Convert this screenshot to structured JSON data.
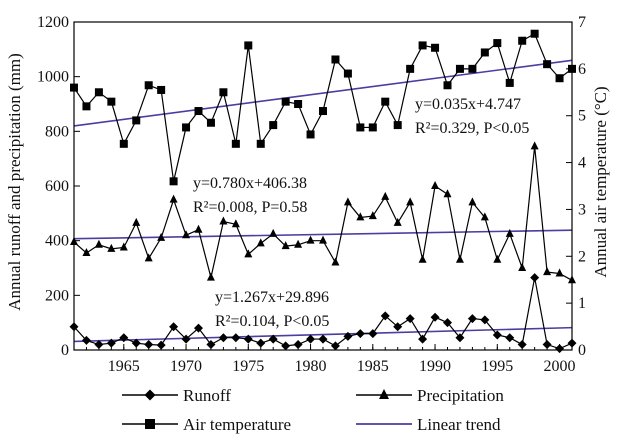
{
  "chart_data": {
    "type": "line",
    "x": [
      1961,
      1962,
      1963,
      1964,
      1965,
      1966,
      1967,
      1968,
      1969,
      1970,
      1971,
      1972,
      1973,
      1974,
      1975,
      1976,
      1977,
      1978,
      1979,
      1980,
      1981,
      1982,
      1983,
      1984,
      1985,
      1986,
      1987,
      1988,
      1989,
      1990,
      1991,
      1992,
      1993,
      1994,
      1995,
      1996,
      1997,
      1998,
      1999,
      2000,
      2001
    ],
    "x_ticks": [
      1965,
      1970,
      1975,
      1980,
      1985,
      1990,
      1995,
      2000
    ],
    "xlim": [
      1961,
      2001
    ],
    "left_axis": {
      "label": "Annual runoff and precipitation (mm)",
      "ylim": [
        0,
        1200
      ],
      "ticks": [
        0,
        200,
        400,
        600,
        800,
        1000,
        1200
      ]
    },
    "right_axis": {
      "label": "Annual air temperature (°C)",
      "ylim": [
        0,
        7
      ],
      "ticks": [
        0,
        1,
        2,
        3,
        4,
        5,
        6,
        7
      ]
    },
    "series": [
      {
        "name": "Runoff",
        "axis": "left",
        "marker": "diamond",
        "values": [
          85,
          35,
          20,
          25,
          45,
          25,
          20,
          18,
          85,
          40,
          80,
          20,
          45,
          45,
          40,
          25,
          40,
          15,
          20,
          40,
          40,
          15,
          50,
          60,
          60,
          125,
          85,
          115,
          40,
          120,
          100,
          45,
          115,
          110,
          55,
          45,
          20,
          265,
          20,
          5,
          25
        ]
      },
      {
        "name": "Precipitation",
        "axis": "left",
        "marker": "triangle",
        "values": [
          395,
          355,
          385,
          370,
          375,
          465,
          335,
          410,
          550,
          420,
          440,
          265,
          470,
          460,
          350,
          390,
          425,
          380,
          385,
          400,
          400,
          320,
          540,
          485,
          490,
          560,
          465,
          540,
          330,
          600,
          570,
          330,
          540,
          485,
          330,
          425,
          300,
          745,
          285,
          280,
          255
        ]
      },
      {
        "name": "Air temperature",
        "axis": "right",
        "marker": "square",
        "values": [
          5.6,
          5.2,
          5.5,
          5.3,
          4.4,
          4.9,
          5.65,
          5.55,
          3.6,
          4.75,
          5.1,
          4.85,
          5.5,
          4.4,
          6.5,
          4.4,
          4.8,
          5.3,
          5.25,
          4.6,
          5.1,
          6.2,
          5.9,
          4.75,
          4.75,
          5.3,
          4.8,
          6.0,
          6.5,
          6.45,
          5.65,
          6.0,
          6.0,
          6.35,
          6.55,
          5.7,
          6.6,
          6.75,
          6.1,
          5.8,
          6.0
        ]
      }
    ],
    "trend_lines": [
      {
        "axis": "right",
        "slope": 0.035,
        "intercept": 4.747,
        "equation": "y=0.035x+4.747",
        "stats": "R²=0.329,  P<0.05"
      },
      {
        "axis": "left",
        "slope": 0.78,
        "intercept": 406.38,
        "equation": "y=0.780x+406.38",
        "stats": "R²=0.008,  P=0.58"
      },
      {
        "axis": "left",
        "slope": 1.267,
        "intercept": 29.896,
        "equation": "y=1.267x+29.896",
        "stats": "R²=0.104,  P<0.05"
      }
    ],
    "legend": {
      "placement": "bottom",
      "entries": [
        "Runoff",
        "Precipitation",
        "Air temperature",
        "Linear trend"
      ]
    },
    "colors": {
      "series": "#000000",
      "trend": "#4a3ea0",
      "background": "#ffffff"
    },
    "grid": false
  }
}
